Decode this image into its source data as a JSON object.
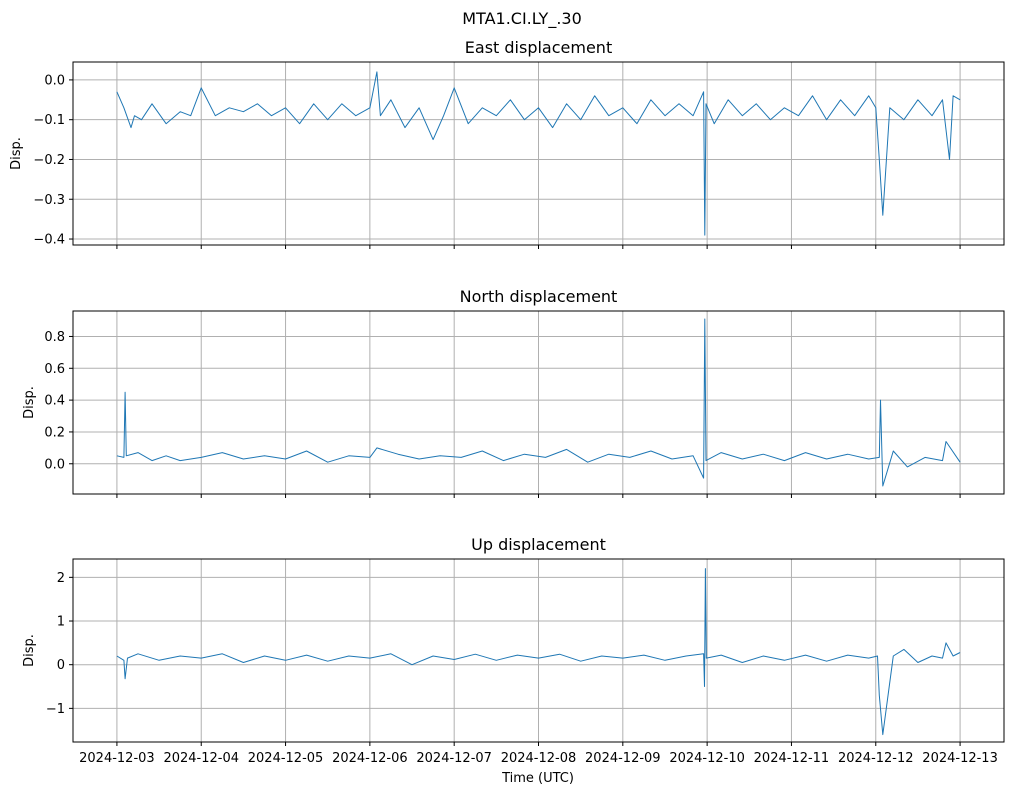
{
  "chart_data": {
    "type": "line",
    "suptitle": "MTA1.CI.LY_.30",
    "xlabel": "Time (UTC)",
    "x_ticks": [
      "2024-12-03",
      "2024-12-04",
      "2024-12-05",
      "2024-12-06",
      "2024-12-07",
      "2024-12-08",
      "2024-12-09",
      "2024-12-10",
      "2024-12-11",
      "2024-12-12",
      "2024-12-13"
    ],
    "x_range": [
      "2024-12-02T11:30",
      "2024-12-13T12:30"
    ],
    "grid": true,
    "series_color": "#1f77b4",
    "panels": [
      {
        "title": "East displacement",
        "ylabel": "Disp.",
        "ylim": [
          -0.415,
          0.045
        ],
        "yticks": [
          0.0,
          -0.1,
          -0.2,
          -0.3,
          -0.4
        ],
        "ytick_labels": [
          "0.0",
          "−0.1",
          "−0.2",
          "−0.3",
          "−0.4"
        ],
        "x": [
          "2024-12-03T00:00",
          "2024-12-03T02:00",
          "2024-12-03T04:00",
          "2024-12-03T05:00",
          "2024-12-03T07:00",
          "2024-12-03T10:00",
          "2024-12-03T14:00",
          "2024-12-03T18:00",
          "2024-12-03T21:00",
          "2024-12-04T00:00",
          "2024-12-04T04:00",
          "2024-12-04T08:00",
          "2024-12-04T12:00",
          "2024-12-04T16:00",
          "2024-12-04T20:00",
          "2024-12-05T00:00",
          "2024-12-05T04:00",
          "2024-12-05T08:00",
          "2024-12-05T12:00",
          "2024-12-05T16:00",
          "2024-12-05T20:00",
          "2024-12-06T00:00",
          "2024-12-06T02:00",
          "2024-12-06T03:00",
          "2024-12-06T06:00",
          "2024-12-06T10:00",
          "2024-12-06T14:00",
          "2024-12-06T18:00",
          "2024-12-06T21:00",
          "2024-12-07T00:00",
          "2024-12-07T04:00",
          "2024-12-07T08:00",
          "2024-12-07T12:00",
          "2024-12-07T16:00",
          "2024-12-07T20:00",
          "2024-12-08T00:00",
          "2024-12-08T04:00",
          "2024-12-08T08:00",
          "2024-12-08T12:00",
          "2024-12-08T16:00",
          "2024-12-08T20:00",
          "2024-12-09T00:00",
          "2024-12-09T04:00",
          "2024-12-09T08:00",
          "2024-12-09T12:00",
          "2024-12-09T16:00",
          "2024-12-09T20:00",
          "2024-12-09T23:00",
          "2024-12-09T23:20",
          "2024-12-09T23:40",
          "2024-12-10T02:00",
          "2024-12-10T06:00",
          "2024-12-10T10:00",
          "2024-12-10T14:00",
          "2024-12-10T18:00",
          "2024-12-10T22:00",
          "2024-12-11T02:00",
          "2024-12-11T06:00",
          "2024-12-11T10:00",
          "2024-12-11T14:00",
          "2024-12-11T18:00",
          "2024-12-11T22:00",
          "2024-12-12T00:00",
          "2024-12-12T01:00",
          "2024-12-12T02:00",
          "2024-12-12T04:00",
          "2024-12-12T08:00",
          "2024-12-12T12:00",
          "2024-12-12T16:00",
          "2024-12-12T19:00",
          "2024-12-12T21:00",
          "2024-12-12T22:00",
          "2024-12-13T00:00"
        ],
        "y": [
          -0.03,
          -0.07,
          -0.12,
          -0.09,
          -0.1,
          -0.06,
          -0.11,
          -0.08,
          -0.09,
          -0.02,
          -0.09,
          -0.07,
          -0.08,
          -0.06,
          -0.09,
          -0.07,
          -0.11,
          -0.06,
          -0.1,
          -0.06,
          -0.09,
          -0.07,
          0.02,
          -0.09,
          -0.05,
          -0.12,
          -0.07,
          -0.15,
          -0.09,
          -0.02,
          -0.11,
          -0.07,
          -0.09,
          -0.05,
          -0.1,
          -0.07,
          -0.12,
          -0.06,
          -0.1,
          -0.04,
          -0.09,
          -0.07,
          -0.11,
          -0.05,
          -0.09,
          -0.06,
          -0.09,
          -0.03,
          -0.39,
          -0.06,
          -0.11,
          -0.05,
          -0.09,
          -0.06,
          -0.1,
          -0.07,
          -0.09,
          -0.04,
          -0.1,
          -0.05,
          -0.09,
          -0.04,
          -0.07,
          -0.2,
          -0.34,
          -0.07,
          -0.1,
          -0.05,
          -0.09,
          -0.05,
          -0.2,
          -0.04,
          -0.05
        ]
      },
      {
        "title": "North displacement",
        "ylabel": "Disp.",
        "ylim": [
          -0.19,
          0.96
        ],
        "yticks": [
          0.0,
          0.2,
          0.4,
          0.6,
          0.8
        ],
        "ytick_labels": [
          "0.0",
          "0.2",
          "0.4",
          "0.6",
          "0.8"
        ],
        "x": [
          "2024-12-03T00:00",
          "2024-12-03T02:00",
          "2024-12-03T02:20",
          "2024-12-03T02:40",
          "2024-12-03T06:00",
          "2024-12-03T10:00",
          "2024-12-03T14:00",
          "2024-12-03T18:00",
          "2024-12-04T00:00",
          "2024-12-04T06:00",
          "2024-12-04T12:00",
          "2024-12-04T18:00",
          "2024-12-05T00:00",
          "2024-12-05T06:00",
          "2024-12-05T12:00",
          "2024-12-05T18:00",
          "2024-12-06T00:00",
          "2024-12-06T02:00",
          "2024-12-06T08:00",
          "2024-12-06T14:00",
          "2024-12-06T20:00",
          "2024-12-07T02:00",
          "2024-12-07T08:00",
          "2024-12-07T14:00",
          "2024-12-07T20:00",
          "2024-12-08T02:00",
          "2024-12-08T08:00",
          "2024-12-08T14:00",
          "2024-12-08T20:00",
          "2024-12-09T02:00",
          "2024-12-09T08:00",
          "2024-12-09T14:00",
          "2024-12-09T20:00",
          "2024-12-09T23:00",
          "2024-12-09T23:20",
          "2024-12-09T23:40",
          "2024-12-10T04:00",
          "2024-12-10T10:00",
          "2024-12-10T16:00",
          "2024-12-10T22:00",
          "2024-12-11T04:00",
          "2024-12-11T10:00",
          "2024-12-11T16:00",
          "2024-12-11T22:00",
          "2024-12-12T01:00",
          "2024-12-12T01:20",
          "2024-12-12T02:00",
          "2024-12-12T05:00",
          "2024-12-12T09:00",
          "2024-12-12T14:00",
          "2024-12-12T19:00",
          "2024-12-12T20:00",
          "2024-12-13T00:00"
        ],
        "y": [
          0.05,
          0.04,
          0.45,
          0.05,
          0.07,
          0.02,
          0.05,
          0.02,
          0.04,
          0.07,
          0.03,
          0.05,
          0.03,
          0.08,
          0.01,
          0.05,
          0.04,
          0.1,
          0.06,
          0.03,
          0.05,
          0.04,
          0.08,
          0.02,
          0.06,
          0.04,
          0.09,
          0.01,
          0.06,
          0.04,
          0.08,
          0.03,
          0.05,
          -0.09,
          0.91,
          0.02,
          0.07,
          0.03,
          0.06,
          0.02,
          0.07,
          0.03,
          0.06,
          0.03,
          0.04,
          0.4,
          -0.14,
          0.08,
          -0.02,
          0.04,
          0.02,
          0.14,
          0.01
        ]
      },
      {
        "title": "Up displacement",
        "ylabel": "Disp.",
        "ylim": [
          -1.77,
          2.42
        ],
        "yticks": [
          -1,
          0,
          1,
          2
        ],
        "ytick_labels": [
          "−1",
          "0",
          "1",
          "2"
        ],
        "x": [
          "2024-12-03T00:00",
          "2024-12-03T02:00",
          "2024-12-03T02:20",
          "2024-12-03T03:00",
          "2024-12-03T06:00",
          "2024-12-03T12:00",
          "2024-12-03T18:00",
          "2024-12-04T00:00",
          "2024-12-04T06:00",
          "2024-12-04T12:00",
          "2024-12-04T18:00",
          "2024-12-05T00:00",
          "2024-12-05T06:00",
          "2024-12-05T12:00",
          "2024-12-05T18:00",
          "2024-12-06T00:00",
          "2024-12-06T06:00",
          "2024-12-06T12:00",
          "2024-12-06T18:00",
          "2024-12-07T00:00",
          "2024-12-07T06:00",
          "2024-12-07T12:00",
          "2024-12-07T18:00",
          "2024-12-08T00:00",
          "2024-12-08T06:00",
          "2024-12-08T12:00",
          "2024-12-08T18:00",
          "2024-12-09T00:00",
          "2024-12-09T06:00",
          "2024-12-09T12:00",
          "2024-12-09T18:00",
          "2024-12-09T23:00",
          "2024-12-09T23:15",
          "2024-12-09T23:30",
          "2024-12-09T23:45",
          "2024-12-10T04:00",
          "2024-12-10T10:00",
          "2024-12-10T16:00",
          "2024-12-10T22:00",
          "2024-12-11T04:00",
          "2024-12-11T10:00",
          "2024-12-11T16:00",
          "2024-12-11T22:00",
          "2024-12-12T00:30",
          "2024-12-12T01:00",
          "2024-12-12T02:00",
          "2024-12-12T05:00",
          "2024-12-12T08:00",
          "2024-12-12T12:00",
          "2024-12-12T16:00",
          "2024-12-12T19:00",
          "2024-12-12T20:00",
          "2024-12-12T22:00",
          "2024-12-13T00:00"
        ],
        "y": [
          0.2,
          0.1,
          -0.32,
          0.15,
          0.25,
          0.1,
          0.2,
          0.15,
          0.25,
          0.05,
          0.2,
          0.1,
          0.22,
          0.08,
          0.2,
          0.15,
          0.25,
          0.0,
          0.2,
          0.12,
          0.24,
          0.1,
          0.22,
          0.15,
          0.24,
          0.08,
          0.2,
          0.15,
          0.22,
          0.1,
          0.2,
          0.25,
          -0.5,
          2.2,
          0.15,
          0.22,
          0.05,
          0.2,
          0.1,
          0.22,
          0.08,
          0.22,
          0.15,
          0.2,
          -0.7,
          -1.6,
          0.2,
          0.35,
          0.05,
          0.2,
          0.15,
          0.5,
          0.2,
          0.28
        ]
      }
    ]
  }
}
